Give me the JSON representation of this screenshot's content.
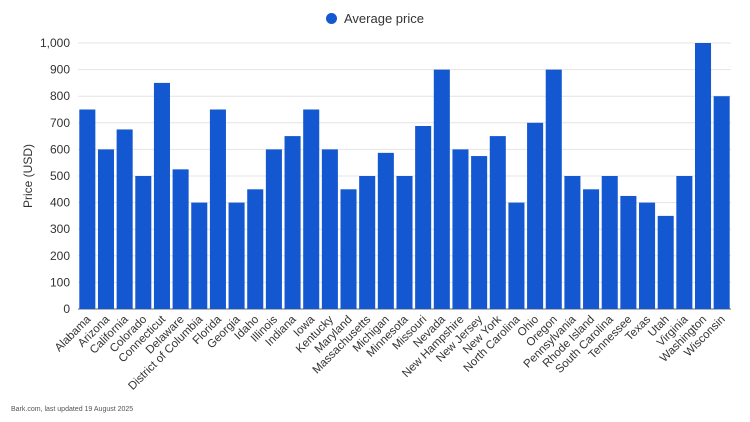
{
  "chart_data": {
    "type": "bar",
    "title": "",
    "xlabel": "",
    "ylabel": "Price (USD)",
    "ylim": [
      0,
      1000
    ],
    "yticks": [
      0,
      100,
      200,
      300,
      400,
      500,
      600,
      700,
      800,
      900,
      1000
    ],
    "ytick_labels": [
      "0",
      "100",
      "200",
      "300",
      "400",
      "500",
      "600",
      "700",
      "800",
      "900",
      "1,000"
    ],
    "grid": true,
    "legend": "top-center",
    "categories": [
      "Alabama",
      "Arizona",
      "California",
      "Colorado",
      "Connecticut",
      "Delaware",
      "District of Columbia",
      "Florida",
      "Georgia",
      "Idaho",
      "Illinois",
      "Indiana",
      "Iowa",
      "Kentucky",
      "Maryland",
      "Massachusetts",
      "Michigan",
      "Minnesota",
      "Missouri",
      "Nevada",
      "New Hampshire",
      "New Jersey",
      "New York",
      "North Carolina",
      "Ohio",
      "Oregon",
      "Pennsylvania",
      "Rhode Island",
      "South Carolina",
      "Tennessee",
      "Texas",
      "Utah",
      "Virginia",
      "Washington",
      "Wisconsin"
    ],
    "series": [
      {
        "name": "Average price",
        "color": "#1358d1",
        "values": [
          750,
          600,
          675,
          500,
          850,
          525,
          400,
          750,
          400,
          450,
          600,
          650,
          750,
          600,
          450,
          500,
          587,
          500,
          688,
          900,
          600,
          575,
          650,
          400,
          700,
          900,
          500,
          450,
          500,
          425,
          400,
          350,
          500,
          1000,
          800
        ]
      }
    ]
  },
  "footer": {
    "source": "Bark.com, last updated 19 August 2025"
  }
}
